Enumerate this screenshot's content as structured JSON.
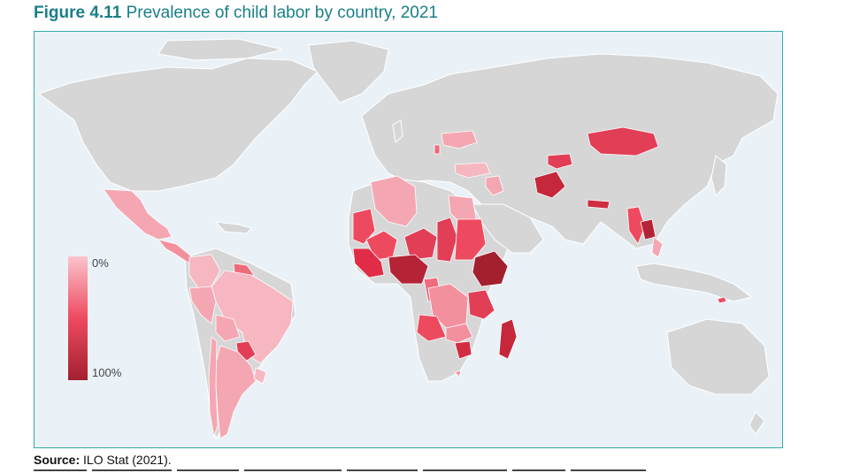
{
  "figure": {
    "label": "Figure 4.11",
    "title": "Prevalence of child labor by country, 2021"
  },
  "legend": {
    "min_label": "0%",
    "max_label": "100%",
    "color_low": "#fbc4cd",
    "color_mid": "#ee4a5f",
    "color_high": "#a3202f"
  },
  "colors": {
    "ocean": "#eaf2f8",
    "land_no_data": "#d6d6d6",
    "border": "#37a9a9",
    "title_text": "#1a7f86"
  },
  "source": {
    "label": "Source:",
    "text": "ILO Stat (2021)."
  },
  "map_data": {
    "type": "choropleth",
    "measure": "Prevalence of child labor",
    "scale_min": 0,
    "scale_max": 100,
    "shaded_regions": [
      {
        "name": "Mexico",
        "level": "low"
      },
      {
        "name": "Central America",
        "level": "low-mid"
      },
      {
        "name": "Colombia",
        "level": "low"
      },
      {
        "name": "Brazil",
        "level": "low"
      },
      {
        "name": "Peru",
        "level": "low"
      },
      {
        "name": "Bolivia",
        "level": "low"
      },
      {
        "name": "Paraguay",
        "level": "mid-high"
      },
      {
        "name": "Argentina",
        "level": "low"
      },
      {
        "name": "Chile",
        "level": "low"
      },
      {
        "name": "Uruguay",
        "level": "low"
      },
      {
        "name": "Algeria",
        "level": "low"
      },
      {
        "name": "Egypt",
        "level": "low"
      },
      {
        "name": "Mauritania",
        "level": "mid"
      },
      {
        "name": "Mali",
        "level": "mid"
      },
      {
        "name": "Niger",
        "level": "mid"
      },
      {
        "name": "Chad",
        "level": "mid"
      },
      {
        "name": "Sudan",
        "level": "mid"
      },
      {
        "name": "West Africa coast",
        "level": "mid-high"
      },
      {
        "name": "Nigeria",
        "level": "high"
      },
      {
        "name": "Ethiopia",
        "level": "high"
      },
      {
        "name": "Cameroon",
        "level": "mid"
      },
      {
        "name": "DR Congo",
        "level": "mid"
      },
      {
        "name": "Tanzania",
        "level": "mid-high"
      },
      {
        "name": "Angola",
        "level": "mid"
      },
      {
        "name": "Zambia",
        "level": "low-mid"
      },
      {
        "name": "Zimbabwe",
        "level": "mid-high"
      },
      {
        "name": "Madagascar",
        "level": "mid-high"
      },
      {
        "name": "Ukraine",
        "level": "low"
      },
      {
        "name": "Turkey",
        "level": "low"
      },
      {
        "name": "Iraq",
        "level": "low"
      },
      {
        "name": "Afghanistan",
        "level": "high"
      },
      {
        "name": "Turkmenistan",
        "level": "mid"
      },
      {
        "name": "Mongolia",
        "level": "mid"
      },
      {
        "name": "Nepal",
        "level": "mid-high"
      },
      {
        "name": "Myanmar",
        "level": "mid"
      },
      {
        "name": "Laos",
        "level": "high"
      },
      {
        "name": "Vietnam",
        "level": "low"
      },
      {
        "name": "Timor-Leste",
        "level": "mid"
      }
    ]
  }
}
